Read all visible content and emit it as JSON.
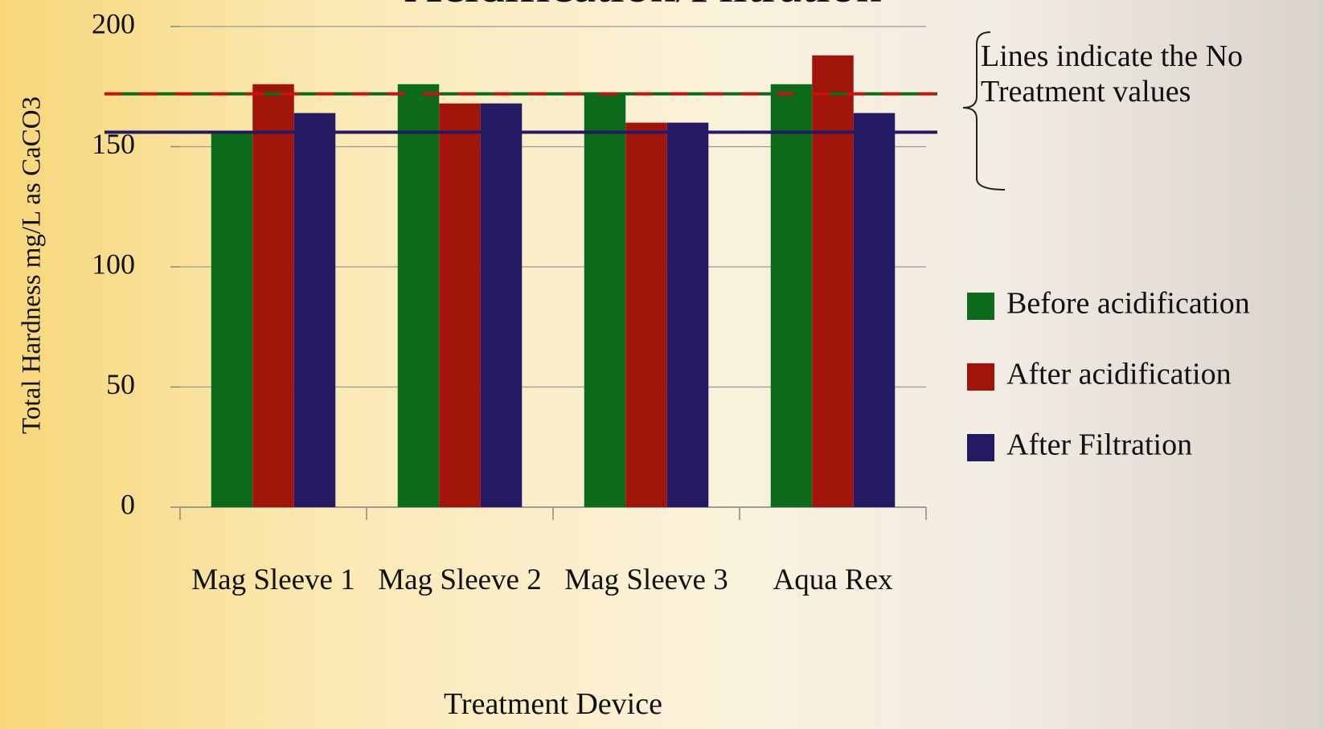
{
  "chart_data": {
    "type": "bar",
    "title": "Acidification/Filtration",
    "categories": [
      "Mag Sleeve 1",
      "Mag Sleeve 2",
      "Mag Sleeve 3",
      "Aqua Rex"
    ],
    "series": [
      {
        "name": "Before acidification",
        "color": "#0b6b1b",
        "values": [
          156,
          176,
          172,
          176
        ]
      },
      {
        "name": "After acidification",
        "color": "#a11409",
        "values": [
          176,
          168,
          160,
          188
        ]
      },
      {
        "name": "After Filtration",
        "color": "#231a63",
        "values": [
          164,
          168,
          160,
          164
        ]
      }
    ],
    "reference_lines": [
      {
        "value": 172,
        "color": "#c4160c",
        "dashed": true
      },
      {
        "value": 172,
        "color": "#0b6b1b",
        "dashed": true
      },
      {
        "value": 156,
        "color": "#231a63",
        "dashed": false
      }
    ],
    "annotation": "Lines indicate the No Treatment values",
    "x_label": "Treatment Device",
    "y_label": "Total Hardness mg/L as CaCO3",
    "ylim": [
      0,
      200
    ],
    "yticks": [
      0,
      50,
      100,
      150,
      200
    ],
    "grid": true,
    "legend": "right"
  }
}
